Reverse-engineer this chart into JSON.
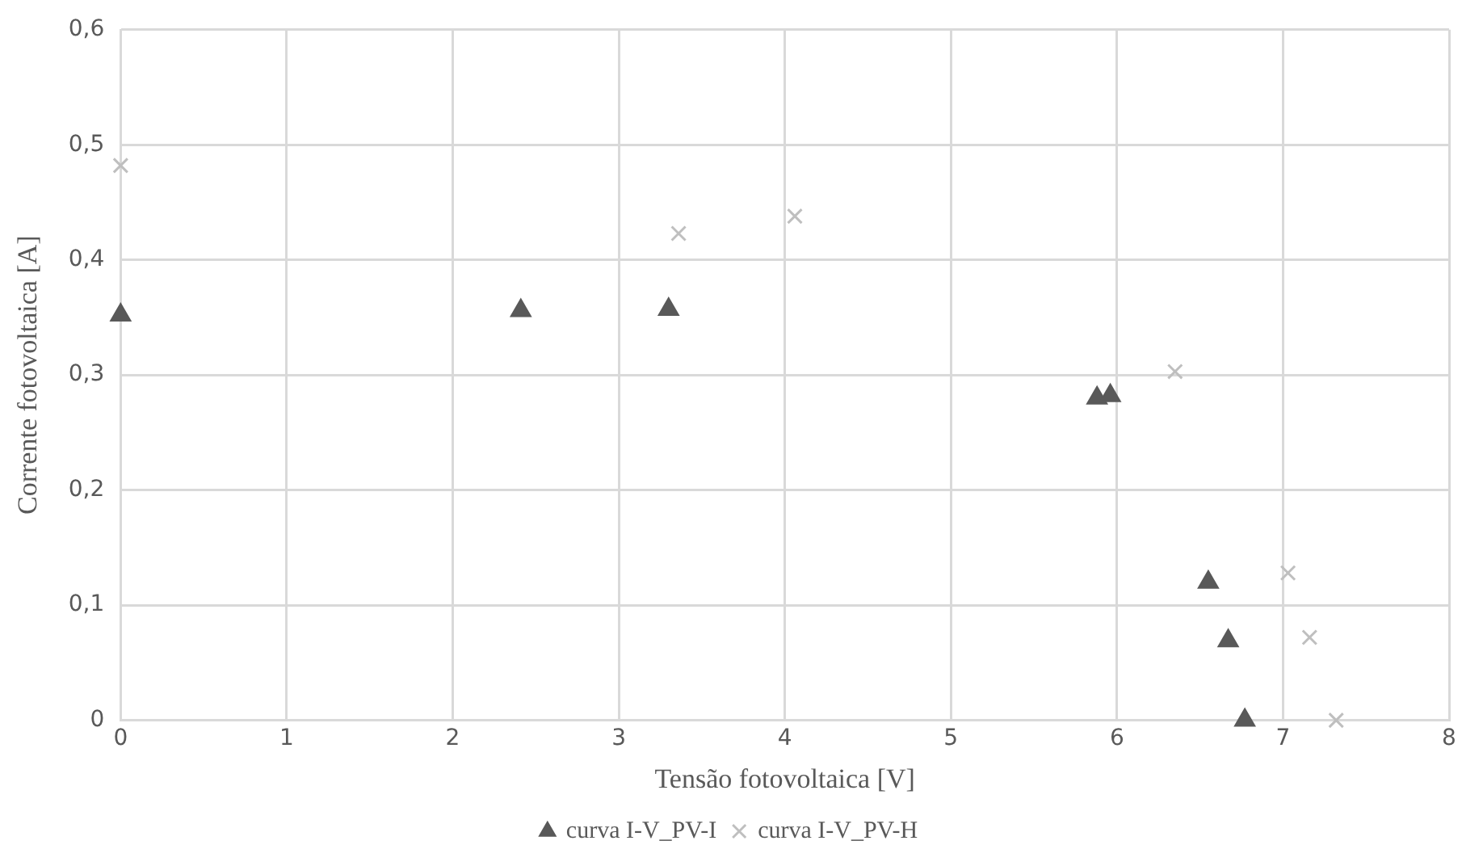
{
  "chart_data": {
    "type": "scatter",
    "xlabel": "Tensão fotovoltaica [V]",
    "ylabel": "Corrente fotovoltaica [A]",
    "xlim": [
      0,
      8
    ],
    "xticks": [
      0,
      1,
      2,
      3,
      4,
      5,
      6,
      7,
      8
    ],
    "ylim": [
      0,
      0.6
    ],
    "yticks": [
      0,
      {
        "value": 0.1,
        "label": "0,1"
      },
      {
        "value": 0.2,
        "label": "0,2"
      },
      {
        "value": 0.3,
        "label": "0,3"
      },
      {
        "value": 0.4,
        "label": "0,4"
      },
      {
        "value": 0.5,
        "label": "0,5"
      },
      {
        "value": 0.6,
        "label": "0,6"
      }
    ],
    "grid": true,
    "legend": "bottom",
    "series": [
      {
        "name": "curva I-V_PV-I",
        "color": "#595959",
        "marker": "triangle",
        "x": [
          0,
          2.41,
          3.3,
          5.88,
          5.96,
          6.55,
          6.67,
          6.77
        ],
        "values": [
          0.352,
          0.356,
          0.357,
          0.28,
          0.282,
          0.12,
          0.069,
          0
        ]
      },
      {
        "name": "curva I-V_PV-H",
        "color": "#bfbfbf",
        "marker": "cross",
        "x": [
          0,
          3.36,
          4.06,
          6.35,
          7.03,
          7.16,
          7.32
        ],
        "values": [
          0.482,
          0.423,
          0.438,
          0.303,
          0.128,
          0.072,
          0
        ]
      }
    ]
  }
}
